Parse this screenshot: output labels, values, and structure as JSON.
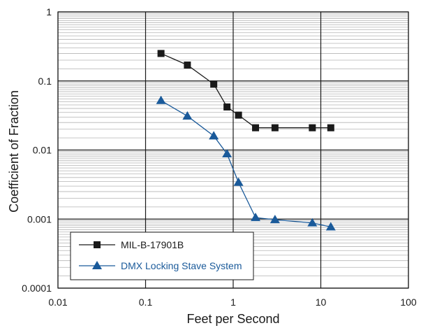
{
  "chart_data": {
    "type": "line",
    "x_scale": "log",
    "y_scale": "log",
    "xlim": [
      0.01,
      100
    ],
    "ylim": [
      0.0001,
      1
    ],
    "xlabel": "Feet per Second",
    "ylabel": "Coefficient of Fraction",
    "x_ticks": [
      0.01,
      0.1,
      1,
      10,
      100
    ],
    "x_tick_labels": [
      "0.01",
      "0.1",
      "1",
      "10",
      "100"
    ],
    "y_ticks": [
      0.0001,
      0.001,
      0.01,
      0.1,
      1
    ],
    "y_tick_labels": [
      "0.0001",
      "0.001",
      "0.01",
      "0.1",
      "1"
    ],
    "grid": true,
    "legend_position": "bottom-left",
    "series": [
      {
        "name": "MIL-B-17901B",
        "color": "#1a1a1a",
        "marker": "square",
        "x": [
          0.15,
          0.3,
          0.6,
          0.85,
          1.15,
          1.8,
          3,
          8,
          13
        ],
        "y": [
          0.25,
          0.17,
          0.09,
          0.042,
          0.032,
          0.021,
          0.021,
          0.021,
          0.021
        ]
      },
      {
        "name": "DMX Locking Stave System",
        "color": "#1a5a9a",
        "marker": "triangle",
        "x": [
          0.15,
          0.3,
          0.6,
          0.85,
          1.15,
          1.8,
          3,
          8,
          13
        ],
        "y": [
          0.052,
          0.031,
          0.016,
          0.0088,
          0.0034,
          0.00105,
          0.00098,
          0.00088,
          0.00077
        ]
      }
    ]
  }
}
